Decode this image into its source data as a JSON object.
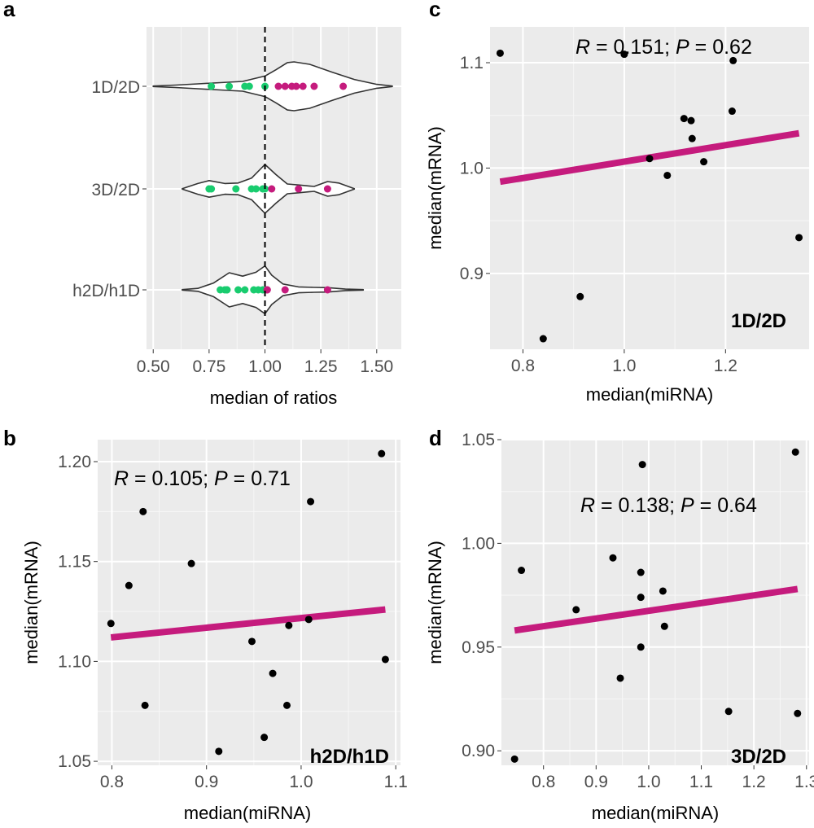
{
  "panels": {
    "a": {
      "letter": "a",
      "chart_data": {
        "type": "violin",
        "xlabel": "median of ratios",
        "xlim": [
          0.47,
          1.61
        ],
        "x_ticks": [
          0.5,
          0.75,
          1.0,
          1.25,
          1.5
        ],
        "x_tick_labels": [
          "0.50",
          "0.75",
          "1.00",
          "1.25",
          "1.50"
        ],
        "reference_line": 1.0,
        "categories": [
          "1D/2D",
          "3D/2D",
          "h2D/h1D"
        ],
        "colors": {
          "below_one": "#19cc6f",
          "above_one": "#c51b7d",
          "violin_fill": "#ffffff",
          "violin_stroke": "#333333"
        },
        "groups": [
          {
            "label": "1D/2D",
            "points": [
              0.76,
              0.84,
              0.91,
              0.93,
              1.0,
              1.06,
              1.09,
              1.12,
              1.14,
              1.17,
              1.22,
              1.35
            ],
            "violin": [
              [
                0.5,
                0.01
              ],
              [
                0.6,
                0.05
              ],
              [
                0.7,
                0.1
              ],
              [
                0.8,
                0.15
              ],
              [
                0.9,
                0.2
              ],
              [
                1.0,
                0.42
              ],
              [
                1.05,
                0.68
              ],
              [
                1.1,
                0.97
              ],
              [
                1.13,
                1.0
              ],
              [
                1.2,
                0.9
              ],
              [
                1.3,
                0.58
              ],
              [
                1.4,
                0.28
              ],
              [
                1.5,
                0.08
              ],
              [
                1.57,
                0.01
              ]
            ]
          },
          {
            "label": "3D/2D",
            "points": [
              0.75,
              0.76,
              0.87,
              0.94,
              0.96,
              0.99,
              1.0,
              1.03,
              1.15,
              1.28
            ],
            "violin": [
              [
                0.63,
                0.01
              ],
              [
                0.7,
                0.22
              ],
              [
                0.75,
                0.34
              ],
              [
                0.82,
                0.22
              ],
              [
                0.88,
                0.24
              ],
              [
                0.94,
                0.44
              ],
              [
                1.0,
                1.0
              ],
              [
                1.05,
                0.58
              ],
              [
                1.1,
                0.2
              ],
              [
                1.15,
                0.16
              ],
              [
                1.22,
                0.1
              ],
              [
                1.28,
                0.3
              ],
              [
                1.33,
                0.24
              ],
              [
                1.4,
                0.01
              ]
            ]
          },
          {
            "label": "h2D/h1D",
            "points": [
              0.8,
              0.82,
              0.83,
              0.83,
              0.88,
              0.91,
              0.95,
              0.97,
              0.99,
              1.01,
              1.01,
              1.09,
              1.28
            ],
            "violin": [
              [
                0.63,
                0.01
              ],
              [
                0.7,
                0.06
              ],
              [
                0.77,
                0.28
              ],
              [
                0.84,
                0.7
              ],
              [
                0.9,
                0.56
              ],
              [
                0.96,
                0.72
              ],
              [
                1.0,
                0.98
              ],
              [
                1.03,
                0.6
              ],
              [
                1.08,
                0.24
              ],
              [
                1.15,
                0.12
              ],
              [
                1.22,
                0.1
              ],
              [
                1.28,
                0.09
              ],
              [
                1.36,
                0.03
              ],
              [
                1.44,
                0.01
              ]
            ]
          }
        ]
      }
    },
    "c": {
      "letter": "c",
      "stat": {
        "r_letter": "R",
        "r_value": " = 0.151; ",
        "p_letter": "P",
        "p_value": " = 0.62"
      },
      "corner_label": "1D/2D",
      "chart_data": {
        "type": "scatter",
        "xlabel": "median(miRNA)",
        "ylabel": "median(mRNA)",
        "xlim": [
          0.735,
          1.365
        ],
        "ylim": [
          0.828,
          1.134
        ],
        "x_ticks": [
          0.8,
          1.0,
          1.2
        ],
        "x_tick_labels": [
          "0.8",
          "1.0",
          "1.2"
        ],
        "y_ticks": [
          0.9,
          1.0,
          1.1
        ],
        "y_tick_labels": [
          "0.9",
          "1.0",
          "1.1"
        ],
        "points": [
          [
            0.755,
            1.109
          ],
          [
            0.84,
            0.838
          ],
          [
            0.913,
            0.878
          ],
          [
            1.0,
            1.108
          ],
          [
            1.05,
            1.009
          ],
          [
            1.085,
            0.993
          ],
          [
            1.118,
            1.047
          ],
          [
            1.132,
            1.045
          ],
          [
            1.134,
            1.028
          ],
          [
            1.157,
            1.006
          ],
          [
            1.213,
            1.054
          ],
          [
            1.215,
            1.102
          ],
          [
            1.345,
            0.934
          ]
        ],
        "fit_line": {
          "x": [
            0.755,
            1.345
          ],
          "y": [
            0.987,
            1.033
          ],
          "color": "#c51b7d"
        }
      }
    },
    "b": {
      "letter": "b",
      "stat": {
        "r_letter": "R",
        "r_value": " = 0.105; ",
        "p_letter": "P",
        "p_value": " = 0.71"
      },
      "corner_label": "h2D/h1D",
      "chart_data": {
        "type": "scatter",
        "xlabel": "median(miRNA)",
        "ylabel": "median(mRNA)",
        "xlim": [
          0.785,
          1.105
        ],
        "ylim": [
          1.048,
          1.211
        ],
        "x_ticks": [
          0.8,
          0.9,
          1.0,
          1.1
        ],
        "x_tick_labels": [
          "0.8",
          "0.9",
          "1.0",
          "1.1"
        ],
        "y_ticks": [
          1.05,
          1.1,
          1.15,
          1.2
        ],
        "y_tick_labels": [
          "1.05",
          "1.10",
          "1.15",
          "1.20"
        ],
        "points": [
          [
            0.799,
            1.119
          ],
          [
            0.818,
            1.138
          ],
          [
            0.833,
            1.175
          ],
          [
            0.835,
            1.078
          ],
          [
            0.884,
            1.149
          ],
          [
            0.913,
            1.055
          ],
          [
            0.948,
            1.11
          ],
          [
            0.961,
            1.062
          ],
          [
            0.97,
            1.094
          ],
          [
            0.985,
            1.078
          ],
          [
            0.987,
            1.118
          ],
          [
            1.008,
            1.121
          ],
          [
            1.01,
            1.18
          ],
          [
            1.085,
            1.204
          ],
          [
            1.089,
            1.101
          ]
        ],
        "fit_line": {
          "x": [
            0.799,
            1.089
          ],
          "y": [
            1.112,
            1.126
          ],
          "color": "#c51b7d"
        }
      }
    },
    "d": {
      "letter": "d",
      "stat": {
        "r_letter": "R",
        "r_value": " = 0.138; ",
        "p_letter": "P",
        "p_value": " = 0.64"
      },
      "corner_label": "3D/2D",
      "chart_data": {
        "type": "scatter",
        "xlabel": "median(miRNA)",
        "ylabel": "median(mRNA)",
        "xlim": [
          0.72,
          1.305
        ],
        "ylim": [
          0.893,
          1.05
        ],
        "x_ticks": [
          0.8,
          0.9,
          1.0,
          1.1,
          1.2,
          1.3
        ],
        "x_tick_labels": [
          "0.8",
          "0.9",
          "1.0",
          "1.1",
          "1.2",
          "1.3"
        ],
        "y_ticks": [
          0.9,
          0.95,
          1.0,
          1.05
        ],
        "y_tick_labels": [
          "0.90",
          "0.95",
          "1.00",
          "1.05"
        ],
        "points": [
          [
            0.745,
            0.896
          ],
          [
            0.758,
            0.987
          ],
          [
            0.862,
            0.968
          ],
          [
            0.932,
            0.993
          ],
          [
            0.946,
            0.935
          ],
          [
            0.985,
            0.95
          ],
          [
            0.985,
            0.974
          ],
          [
            0.985,
            0.986
          ],
          [
            0.988,
            1.038
          ],
          [
            1.027,
            0.977
          ],
          [
            1.03,
            0.96
          ],
          [
            1.152,
            0.919
          ],
          [
            1.279,
            1.044
          ],
          [
            1.283,
            0.918
          ]
        ],
        "fit_line": {
          "x": [
            0.745,
            1.283
          ],
          "y": [
            0.958,
            0.978
          ],
          "color": "#c51b7d"
        }
      }
    }
  }
}
